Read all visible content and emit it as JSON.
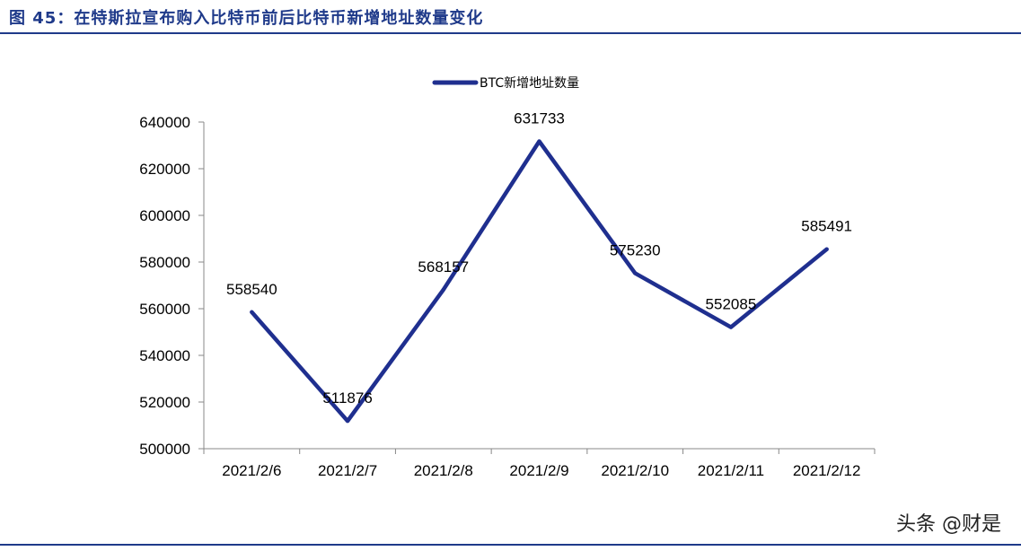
{
  "figure": {
    "title": "图 45：在特斯拉宣布购入比特币前后比特币新增地址数量变化",
    "watermark": "头条 @财是"
  },
  "colors": {
    "brand_blue": "#1f3a8a",
    "series_line": "#1f2f8f"
  },
  "chart_data": {
    "type": "line",
    "categories": [
      "2021/2/6",
      "2021/2/7",
      "2021/2/8",
      "2021/2/9",
      "2021/2/10",
      "2021/2/11",
      "2021/2/12"
    ],
    "series": [
      {
        "name": "BTC新增地址数量",
        "values": [
          558540,
          511876,
          568157,
          631733,
          575230,
          552085,
          585491
        ]
      }
    ],
    "ylim": [
      500000,
      640000
    ],
    "yticks": [
      500000,
      520000,
      540000,
      560000,
      580000,
      600000,
      620000,
      640000
    ],
    "grid": false,
    "legend": "top-center",
    "data_labels": true
  }
}
